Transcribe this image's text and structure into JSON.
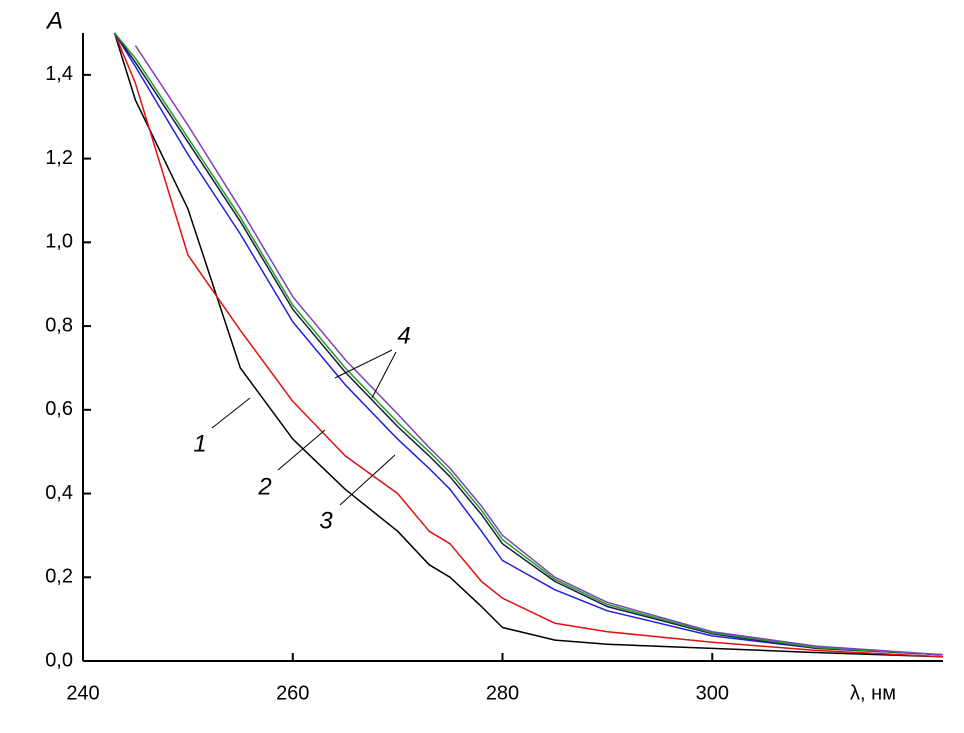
{
  "chart_data": {
    "type": "line",
    "x_label": "λ, нм",
    "y_label": "A",
    "x": [
      243,
      245,
      250,
      255,
      260,
      265,
      270,
      273,
      275,
      278,
      280,
      285,
      290,
      300,
      310,
      322
    ],
    "series": [
      {
        "name": "1",
        "color": "#000000",
        "values": [
          1.5,
          1.34,
          1.08,
          0.7,
          0.53,
          0.41,
          0.31,
          0.23,
          0.2,
          0.13,
          0.08,
          0.05,
          0.04,
          0.03,
          0.02,
          0.01
        ]
      },
      {
        "name": "2",
        "color": "#e01010",
        "values": [
          1.5,
          1.38,
          0.97,
          0.79,
          0.62,
          0.49,
          0.4,
          0.31,
          0.28,
          0.19,
          0.15,
          0.09,
          0.07,
          0.045,
          0.025,
          0.01
        ]
      },
      {
        "name": "3",
        "color": "#2020e0",
        "values": [
          1.5,
          1.42,
          1.21,
          1.02,
          0.81,
          0.66,
          0.53,
          0.46,
          0.41,
          0.31,
          0.24,
          0.17,
          0.12,
          0.06,
          0.03,
          0.015
        ]
      },
      {
        "name": "4",
        "color": "#1a1a40",
        "values": [
          1.5,
          1.43,
          1.24,
          1.05,
          0.84,
          0.69,
          0.56,
          0.49,
          0.44,
          0.35,
          0.28,
          0.19,
          0.13,
          0.065,
          0.03,
          0.015
        ]
      },
      {
        "color": "#20a020",
        "values": [
          1.5,
          1.44,
          1.25,
          1.06,
          0.85,
          0.7,
          0.57,
          0.5,
          0.45,
          0.36,
          0.29,
          0.195,
          0.135,
          0.067,
          0.032,
          0.015
        ]
      },
      {
        "color": "#8040c0",
        "values": [
          null,
          1.47,
          1.28,
          1.08,
          0.87,
          0.72,
          0.59,
          0.51,
          0.46,
          0.37,
          0.3,
          0.2,
          0.14,
          0.07,
          0.035,
          0.015
        ]
      }
    ],
    "xlim": [
      240,
      322
    ],
    "ylim": [
      0,
      1.5
    ],
    "xticks": [
      240,
      260,
      280,
      300
    ],
    "yticks": [
      {
        "value": 0,
        "label": "0,0"
      },
      {
        "value": 0.2,
        "label": "0,2"
      },
      {
        "value": 0.4,
        "label": "0,4"
      },
      {
        "value": 0.6,
        "label": "0,6"
      },
      {
        "value": 0.8,
        "label": "0,8"
      },
      {
        "value": 1.0,
        "label": "1,0"
      },
      {
        "value": 1.2,
        "label": "1,2"
      },
      {
        "value": 1.4,
        "label": "1,4"
      }
    ]
  }
}
